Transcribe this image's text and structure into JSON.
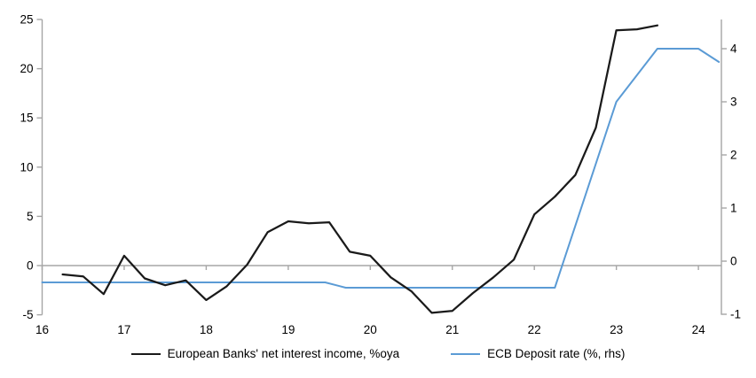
{
  "chart_data": {
    "type": "line",
    "title": "",
    "background": "#ffffff",
    "axis_color": "#a6a6a6",
    "text_color": "#000000",
    "grid": "zero-line-only",
    "legend_position": "bottom",
    "x_ticks": [
      16,
      17,
      18,
      19,
      20,
      21,
      22,
      23,
      24
    ],
    "left_axis": {
      "ticks": [
        -5,
        0,
        5,
        10,
        15,
        20,
        25
      ],
      "range": [
        -5,
        25
      ]
    },
    "right_axis": {
      "ticks": [
        -1,
        0,
        1,
        2,
        3,
        4
      ],
      "range": [
        -1,
        4.5
      ]
    },
    "series": [
      {
        "name": "European Banks' net interest income, %oya",
        "axis": "left",
        "color": "#1a1a1a",
        "width": 2.25,
        "x": [
          16.25,
          16.5,
          16.75,
          17.0,
          17.25,
          17.5,
          17.75,
          18.0,
          18.25,
          18.5,
          18.75,
          19.0,
          19.25,
          19.5,
          19.75,
          20.0,
          20.25,
          20.5,
          20.75,
          21.0,
          21.25,
          21.5,
          21.75,
          22.0,
          22.25,
          22.5,
          22.75,
          23.0,
          23.25,
          23.5
        ],
        "values": [
          -0.9,
          -1.1,
          -2.9,
          1.0,
          -1.3,
          -2.0,
          -1.5,
          -3.5,
          -2.1,
          0.1,
          3.4,
          4.5,
          4.3,
          4.4,
          1.4,
          1.0,
          -1.2,
          -2.6,
          -4.8,
          -4.6,
          -2.8,
          -1.2,
          0.6,
          5.2,
          7.0,
          9.2,
          14.0,
          23.9,
          24.0,
          24.4
        ]
      },
      {
        "name": "ECB Deposit rate (%, rhs)",
        "axis": "right",
        "color": "#5b9bd5",
        "width": 2.0,
        "x": [
          16.0,
          19.45,
          19.7,
          22.25,
          23.0,
          23.5,
          24.0,
          24.25
        ],
        "values": [
          -0.4,
          -0.4,
          -0.5,
          -0.5,
          3.0,
          4.0,
          4.0,
          3.75
        ]
      }
    ]
  }
}
